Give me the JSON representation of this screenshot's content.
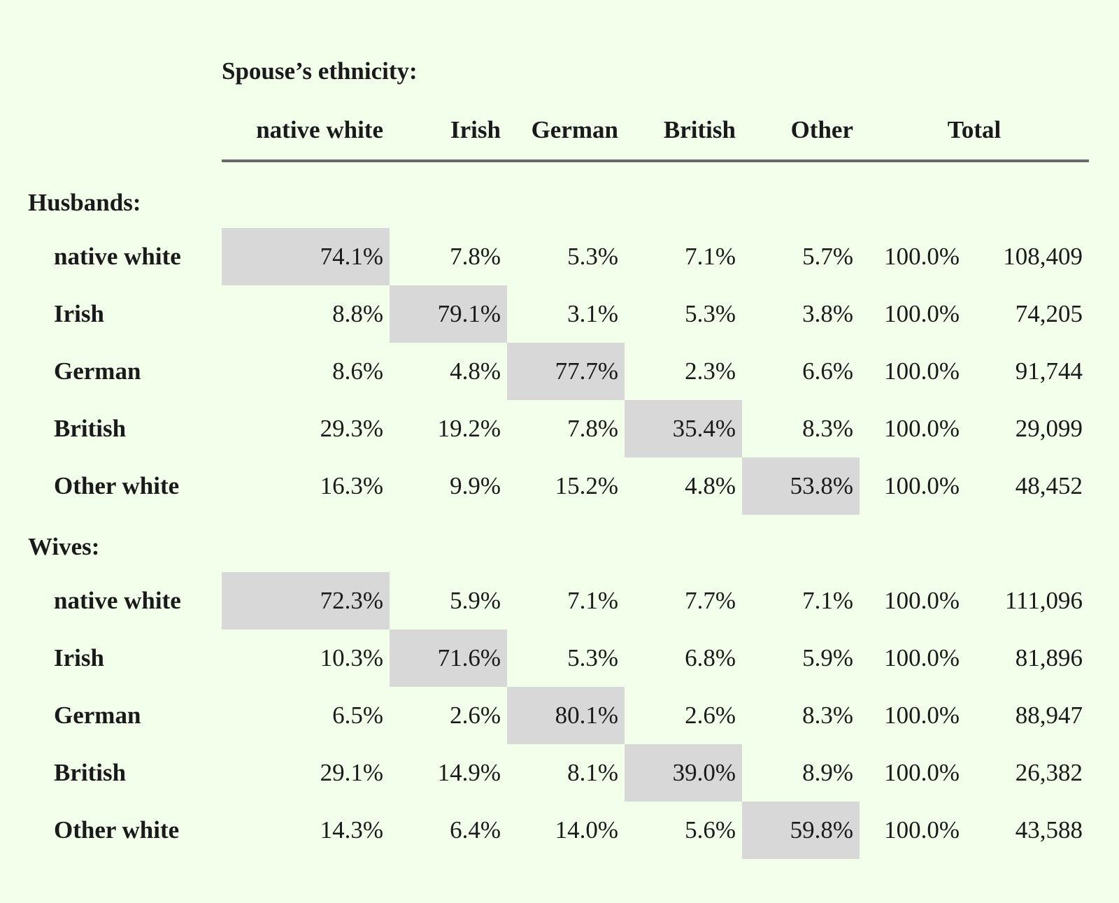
{
  "page": {
    "background": "#f2ffeb",
    "highlight_color": "#d8d8d8",
    "text_color": "#1a1a1a",
    "rule_color": "#6a6a6a"
  },
  "chart_data": {
    "type": "table",
    "title": "Spouse’s ethnicity:",
    "columns": [
      "native white",
      "Irish",
      "German",
      "British",
      "Other"
    ],
    "total_label": "Total",
    "sections": [
      {
        "label": "Husbands:",
        "rows": [
          {
            "label": "native white",
            "highlight": 0,
            "values": [
              "74.1%",
              "7.8%",
              "5.3%",
              "7.1%",
              "5.7%"
            ],
            "total_pct": "100.0%",
            "total_n": "108,409"
          },
          {
            "label": "Irish",
            "highlight": 1,
            "values": [
              "8.8%",
              "79.1%",
              "3.1%",
              "5.3%",
              "3.8%"
            ],
            "total_pct": "100.0%",
            "total_n": "74,205"
          },
          {
            "label": "German",
            "highlight": 2,
            "values": [
              "8.6%",
              "4.8%",
              "77.7%",
              "2.3%",
              "6.6%"
            ],
            "total_pct": "100.0%",
            "total_n": "91,744"
          },
          {
            "label": "British",
            "highlight": 3,
            "values": [
              "29.3%",
              "19.2%",
              "7.8%",
              "35.4%",
              "8.3%"
            ],
            "total_pct": "100.0%",
            "total_n": "29,099"
          },
          {
            "label": "Other white",
            "highlight": 4,
            "values": [
              "16.3%",
              "9.9%",
              "15.2%",
              "4.8%",
              "53.8%"
            ],
            "total_pct": "100.0%",
            "total_n": "48,452"
          }
        ]
      },
      {
        "label": "Wives:",
        "rows": [
          {
            "label": "native white",
            "highlight": 0,
            "values": [
              "72.3%",
              "5.9%",
              "7.1%",
              "7.7%",
              "7.1%"
            ],
            "total_pct": "100.0%",
            "total_n": "111,096"
          },
          {
            "label": "Irish",
            "highlight": 1,
            "values": [
              "10.3%",
              "71.6%",
              "5.3%",
              "6.8%",
              "5.9%"
            ],
            "total_pct": "100.0%",
            "total_n": "81,896"
          },
          {
            "label": "German",
            "highlight": 2,
            "values": [
              "6.5%",
              "2.6%",
              "80.1%",
              "2.6%",
              "8.3%"
            ],
            "total_pct": "100.0%",
            "total_n": "88,947"
          },
          {
            "label": "British",
            "highlight": 3,
            "values": [
              "29.1%",
              "14.9%",
              "8.1%",
              "39.0%",
              "8.9%"
            ],
            "total_pct": "100.0%",
            "total_n": "26,382"
          },
          {
            "label": "Other white",
            "highlight": 4,
            "values": [
              "14.3%",
              "6.4%",
              "14.0%",
              "5.6%",
              "59.8%"
            ],
            "total_pct": "100.0%",
            "total_n": "43,588"
          }
        ]
      }
    ]
  }
}
